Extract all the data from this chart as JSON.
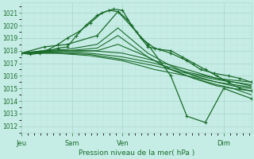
{
  "title": "Pression niveau de la mer( hPa )",
  "ylim": [
    1011.5,
    1021.8
  ],
  "yticks": [
    1012,
    1013,
    1014,
    1015,
    1016,
    1017,
    1018,
    1019,
    1020,
    1021
  ],
  "xtick_labels": [
    "Jeu",
    "Sam",
    "Ven",
    "Dim"
  ],
  "xtick_positions": [
    0.0,
    0.22,
    0.44,
    0.88
  ],
  "bg_color": "#c5ede6",
  "grid_color_major": "#b0d8cc",
  "grid_color_minor": "#c0e4dc",
  "line_color": "#1a6b2a",
  "axis_label_color": "#1a6b2a",
  "tick_label_color": "#1a6b2a",
  "series": [
    {
      "x": [
        0.0,
        0.04,
        0.08,
        0.12,
        0.16,
        0.2,
        0.24,
        0.28,
        0.33,
        0.38,
        0.42,
        0.46,
        0.5,
        0.55,
        0.6,
        0.65,
        0.7,
        0.75,
        0.8,
        0.85,
        0.9,
        0.95,
        1.0
      ],
      "y": [
        1017.8,
        1017.7,
        1017.8,
        1018.0,
        1018.2,
        1018.3,
        1019.2,
        1020.0,
        1020.8,
        1021.2,
        1021.1,
        1020.5,
        1019.5,
        1018.3,
        1018.1,
        1018.0,
        1017.5,
        1017.0,
        1016.5,
        1016.0,
        1015.5,
        1015.0,
        1014.8
      ],
      "marker": true,
      "lw": 0.9
    },
    {
      "x": [
        0.0,
        0.04,
        0.08,
        0.12,
        0.16,
        0.2,
        0.25,
        0.3,
        0.35,
        0.4,
        0.44,
        0.48,
        0.52,
        0.58,
        0.65,
        0.72,
        0.78,
        0.84,
        0.9,
        0.95,
        1.0
      ],
      "y": [
        1017.8,
        1017.8,
        1017.9,
        1018.1,
        1018.5,
        1019.0,
        1019.5,
        1020.2,
        1021.0,
        1021.3,
        1021.2,
        1020.0,
        1019.0,
        1018.2,
        1017.8,
        1017.2,
        1016.5,
        1016.2,
        1016.0,
        1015.8,
        1015.5
      ],
      "marker": true,
      "lw": 0.9
    },
    {
      "x": [
        0.0,
        0.1,
        0.2,
        0.33,
        0.42,
        0.55,
        0.65,
        0.72,
        0.8,
        0.88,
        1.0
      ],
      "y": [
        1017.8,
        1018.3,
        1018.5,
        1019.2,
        1021.1,
        1018.5,
        1016.0,
        1012.8,
        1012.3,
        1015.0,
        1014.2
      ],
      "marker": true,
      "lw": 0.9
    },
    {
      "x": [
        0.0,
        0.1,
        0.2,
        0.33,
        0.42,
        0.55,
        0.65,
        0.75,
        0.85,
        0.92,
        1.0
      ],
      "y": [
        1017.8,
        1018.0,
        1018.1,
        1018.5,
        1019.8,
        1017.8,
        1016.8,
        1016.0,
        1015.5,
        1015.2,
        1015.0
      ],
      "marker": false,
      "lw": 0.8
    },
    {
      "x": [
        0.0,
        0.1,
        0.2,
        0.33,
        0.42,
        0.55,
        0.65,
        0.75,
        0.85,
        0.92,
        1.0
      ],
      "y": [
        1017.8,
        1018.0,
        1018.0,
        1018.2,
        1019.2,
        1017.5,
        1016.5,
        1015.8,
        1015.3,
        1015.0,
        1014.8
      ],
      "marker": false,
      "lw": 0.8
    },
    {
      "x": [
        0.0,
        0.1,
        0.2,
        0.33,
        0.42,
        0.55,
        0.65,
        0.75,
        0.85,
        0.92,
        1.0
      ],
      "y": [
        1017.8,
        1017.9,
        1017.9,
        1018.0,
        1018.5,
        1017.5,
        1016.5,
        1015.8,
        1015.2,
        1015.0,
        1014.5
      ],
      "marker": false,
      "lw": 0.8
    },
    {
      "x": [
        0.0,
        0.15,
        0.3,
        0.44,
        0.58,
        0.72,
        0.85,
        1.0
      ],
      "y": [
        1017.8,
        1018.0,
        1018.0,
        1017.8,
        1017.2,
        1016.5,
        1015.8,
        1015.2
      ],
      "marker": false,
      "lw": 0.8
    },
    {
      "x": [
        0.0,
        0.15,
        0.3,
        0.44,
        0.58,
        0.72,
        0.85,
        1.0
      ],
      "y": [
        1017.8,
        1017.9,
        1017.8,
        1017.5,
        1017.0,
        1016.3,
        1015.8,
        1015.5
      ],
      "marker": false,
      "lw": 0.8
    },
    {
      "x": [
        0.0,
        0.15,
        0.3,
        0.44,
        0.58,
        0.72,
        0.85,
        1.0
      ],
      "y": [
        1017.8,
        1017.8,
        1017.7,
        1017.3,
        1016.8,
        1016.2,
        1015.7,
        1015.3
      ],
      "marker": false,
      "lw": 0.8
    },
    {
      "x": [
        0.0,
        0.15,
        0.3,
        0.44,
        0.58,
        0.72,
        0.85,
        1.0
      ],
      "y": [
        1017.8,
        1017.8,
        1017.6,
        1017.2,
        1016.5,
        1016.0,
        1015.5,
        1015.1
      ],
      "marker": false,
      "lw": 0.8
    }
  ]
}
